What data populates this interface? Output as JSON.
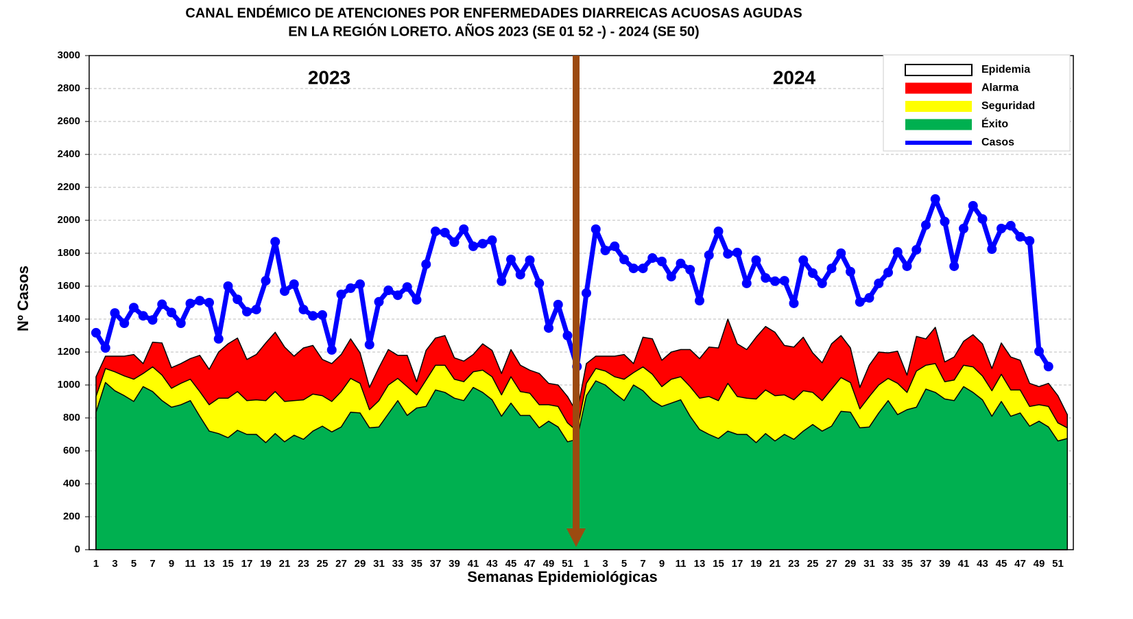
{
  "chart_data": {
    "type": "endemic_channel",
    "title": [
      "CANAL ENDÉMICO DE ATENCIONES POR ENFERMEDADES DIARREICAS ACUOSAS AGUDAS",
      "EN LA REGIÓN LORETO.  AÑOS 2023 (SE 01 52 -) - 2024 (SE 50)"
    ],
    "x_label": "Semanas Epidemiológicas",
    "y_label": "Nº Casos",
    "annotations": [
      "2023",
      "2024"
    ],
    "categories": [
      "1",
      null,
      "3",
      null,
      "5",
      null,
      "7",
      null,
      "9",
      null,
      "11",
      null,
      "13",
      null,
      "15",
      null,
      "17",
      null,
      "19",
      null,
      "21",
      null,
      "23",
      null,
      "25",
      null,
      "27",
      null,
      "29",
      null,
      "31",
      null,
      "33",
      null,
      "35",
      null,
      "37",
      null,
      "39",
      null,
      "41",
      null,
      "43",
      null,
      "45",
      null,
      "47",
      null,
      "49",
      null,
      "51",
      null,
      "1",
      null,
      "3",
      null,
      "5",
      null,
      "7",
      null,
      "9",
      null,
      "11",
      null,
      "13",
      null,
      "15",
      null,
      "17",
      null,
      "19",
      null,
      "21",
      null,
      "23",
      null,
      "25",
      null,
      "27",
      null,
      "29",
      null,
      "31",
      null,
      "33",
      null,
      "35",
      null,
      "37",
      null,
      "39",
      null,
      "41",
      null,
      "43",
      null,
      "45",
      null,
      "47",
      null,
      "49",
      null,
      "51",
      null
    ],
    "ylim": [
      0,
      3000
    ],
    "yticks": [
      0,
      200,
      400,
      600,
      800,
      1000,
      1200,
      1400,
      1600,
      1800,
      2000,
      2200,
      2400,
      2600,
      2800,
      3000
    ],
    "grid": true,
    "legend_position": "upper right",
    "epidemia": {
      "name": "Epidemia",
      "color": "#ffffff"
    },
    "series": [
      {
        "name": "Alarma",
        "kind": "area",
        "color": "#ff0000",
        "values": [
          1050,
          1175,
          1175,
          1175,
          1185,
          1130,
          1260,
          1255,
          1105,
          1130,
          1160,
          1180,
          1095,
          1200,
          1250,
          1285,
          1155,
          1185,
          1255,
          1320,
          1230,
          1175,
          1225,
          1240,
          1155,
          1130,
          1185,
          1280,
          1195,
          985,
          1105,
          1215,
          1180,
          1180,
          1020,
          1210,
          1285,
          1300,
          1165,
          1145,
          1185,
          1250,
          1210,
          1070,
          1215,
          1120,
          1090,
          1070,
          1010,
          1000,
          930,
          830,
          1130,
          1175,
          1175,
          1175,
          1185,
          1130,
          1290,
          1280,
          1150,
          1200,
          1215,
          1215,
          1160,
          1230,
          1225,
          1400,
          1250,
          1215,
          1290,
          1355,
          1320,
          1240,
          1230,
          1290,
          1195,
          1135,
          1250,
          1300,
          1225,
          985,
          1120,
          1200,
          1195,
          1205,
          1060,
          1295,
          1280,
          1350,
          1140,
          1170,
          1265,
          1305,
          1250,
          1100,
          1255,
          1170,
          1150,
          1010,
          990,
          1010,
          935,
          820
        ]
      },
      {
        "name": "Seguridad",
        "kind": "area",
        "color": "#ffff00",
        "values": [
          930,
          1100,
          1080,
          1055,
          1035,
          1070,
          1110,
          1060,
          980,
          1010,
          1035,
          960,
          880,
          920,
          920,
          960,
          905,
          910,
          905,
          960,
          900,
          905,
          910,
          945,
          935,
          900,
          960,
          1040,
          1010,
          850,
          905,
          1000,
          1040,
          990,
          940,
          1030,
          1120,
          1120,
          1035,
          1020,
          1080,
          1090,
          1050,
          940,
          1050,
          960,
          950,
          880,
          880,
          870,
          770,
          720,
          1010,
          1100,
          1085,
          1050,
          1035,
          1075,
          1110,
          1065,
          990,
          1035,
          1050,
          990,
          920,
          930,
          905,
          1010,
          930,
          920,
          915,
          970,
          935,
          940,
          910,
          965,
          955,
          905,
          975,
          1045,
          1015,
          855,
          930,
          1000,
          1040,
          1010,
          955,
          1085,
          1120,
          1130,
          1020,
          1030,
          1120,
          1110,
          1055,
          965,
          1065,
          970,
          970,
          870,
          880,
          870,
          770,
          740
        ]
      },
      {
        "name": "Éxito",
        "kind": "area",
        "color": "#00b050",
        "values": [
          835,
          1015,
          965,
          935,
          900,
          990,
          960,
          905,
          865,
          880,
          905,
          810,
          720,
          705,
          680,
          725,
          700,
          700,
          650,
          705,
          655,
          695,
          670,
          720,
          750,
          715,
          745,
          835,
          830,
          740,
          745,
          825,
          905,
          815,
          860,
          870,
          970,
          955,
          920,
          905,
          985,
          955,
          910,
          810,
          890,
          815,
          815,
          740,
          780,
          745,
          655,
          670,
          935,
          1025,
          1000,
          950,
          905,
          1000,
          965,
          905,
          870,
          890,
          910,
          810,
          730,
          700,
          675,
          720,
          700,
          700,
          650,
          705,
          660,
          700,
          670,
          720,
          760,
          720,
          750,
          840,
          835,
          740,
          745,
          830,
          905,
          820,
          850,
          865,
          975,
          955,
          915,
          905,
          990,
          955,
          910,
          810,
          900,
          810,
          830,
          750,
          780,
          745,
          660,
          675
        ]
      },
      {
        "name": "Casos",
        "kind": "line",
        "color": "#0000ff",
        "values": [
          1317,
          1225,
          1437,
          1375,
          1470,
          1420,
          1395,
          1490,
          1440,
          1375,
          1495,
          1512,
          1500,
          1280,
          1600,
          1520,
          1445,
          1458,
          1633,
          1870,
          1570,
          1612,
          1458,
          1420,
          1425,
          1213,
          1550,
          1588,
          1612,
          1245,
          1505,
          1575,
          1545,
          1595,
          1517,
          1733,
          1933,
          1925,
          1867,
          1946,
          1842,
          1858,
          1879,
          1630,
          1762,
          1670,
          1758,
          1617,
          1346,
          1488,
          1300,
          1112,
          1558,
          1946,
          1817,
          1842,
          1762,
          1708,
          1708,
          1771,
          1750,
          1658,
          1738,
          1700,
          1512,
          1788,
          1933,
          1796,
          1804,
          1617,
          1758,
          1650,
          1630,
          1633,
          1496,
          1758,
          1679,
          1617,
          1708,
          1800,
          1688,
          1504,
          1529,
          1617,
          1683,
          1808,
          1721,
          1821,
          1971,
          2129,
          1992,
          1721,
          1950,
          2088,
          2008,
          1825,
          1950,
          1967,
          1900,
          1875,
          1204,
          1112,
          null,
          null
        ]
      }
    ]
  }
}
